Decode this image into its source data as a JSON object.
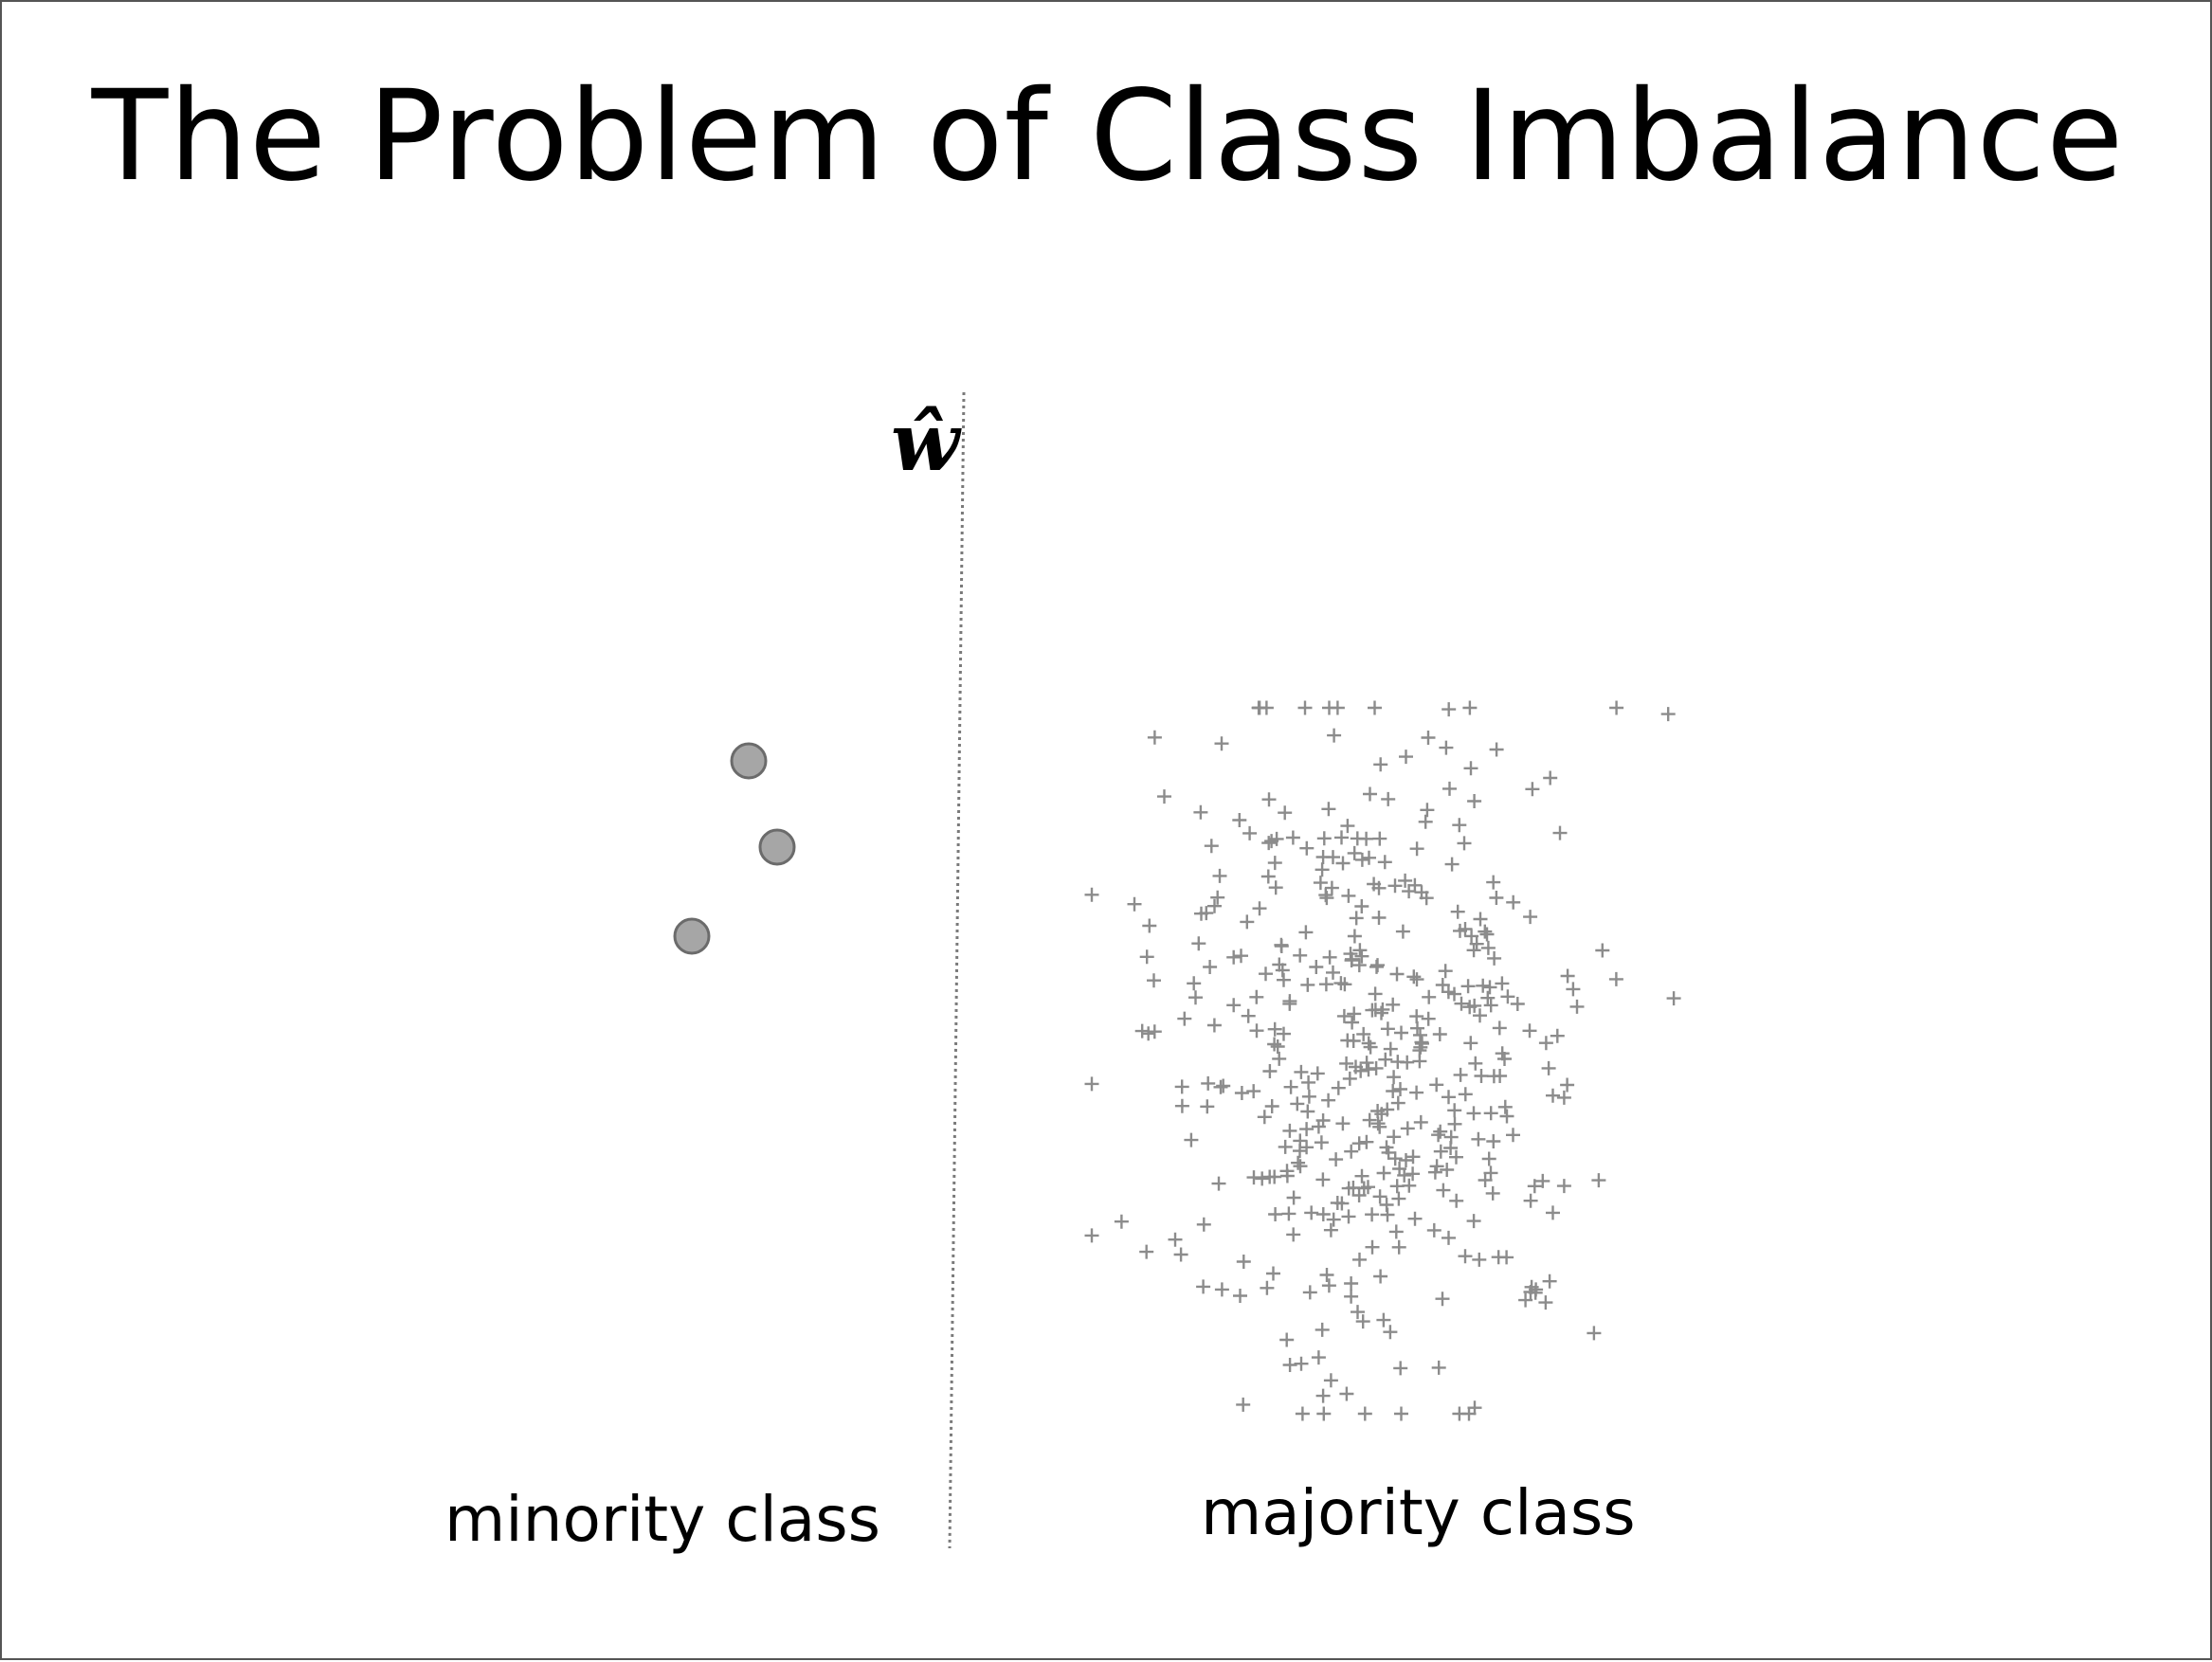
{
  "slide": {
    "title": "The Problem of Class Imbalance"
  },
  "figure": {
    "weight_label": "ŵ",
    "minority_label": "minority class",
    "majority_label": "majority class",
    "colors": {
      "minority_fill": "#a6a6a6",
      "minority_stroke": "#6b6b6b",
      "majority_marker": "#8c8c8c",
      "boundary": "#7a7a7a"
    },
    "minority_count": 3,
    "majority_count": 420
  }
}
